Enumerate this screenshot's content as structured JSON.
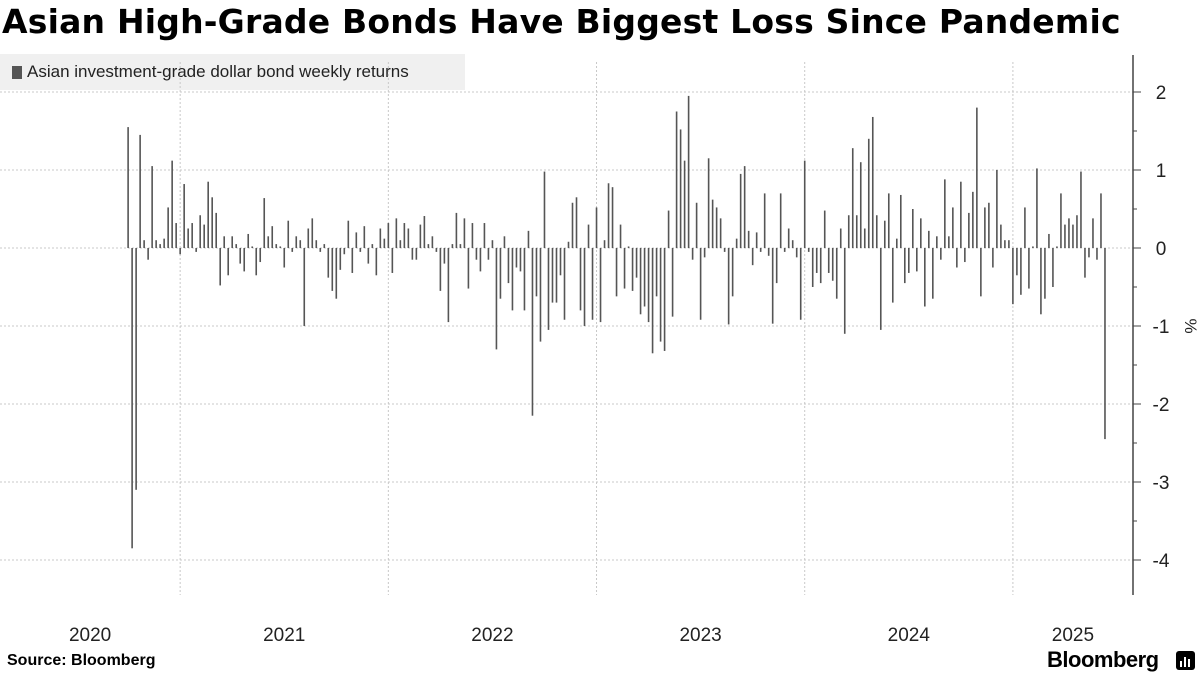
{
  "title": "Asian High-Grade Bonds Have Biggest Loss Since Pandemic",
  "legend": {
    "label": "Asian investment-grade dollar bond weekly returns"
  },
  "source": "Source: Bloomberg",
  "brand": "Bloomberg",
  "brand_icon": "bar-chart-icon",
  "colors": {
    "bar": "#555555",
    "grid": "#c8c8c8",
    "axis": "#444444",
    "legend_bg": "#f0f0f0"
  },
  "chart_data": {
    "type": "bar",
    "title": "Asian High-Grade Bonds Have Biggest Loss Since Pandemic",
    "series_name": "Asian investment-grade dollar bond weekly returns",
    "ylabel": "%",
    "ylim": [
      -4.45,
      2.5
    ],
    "yticks": [
      2,
      1,
      0,
      -1,
      -2,
      -3,
      -4
    ],
    "ytick_labels": [
      "2",
      "1",
      "0",
      "-1",
      "-2",
      "-3",
      "-4"
    ],
    "grid": true,
    "x_range_weeks": [
      -32,
      251
    ],
    "x_year_labels": [
      {
        "label": "2020",
        "week_start": -32,
        "week_end": 13
      },
      {
        "label": "2021",
        "week_start": 13,
        "week_end": 65
      },
      {
        "label": "2022",
        "week_start": 65,
        "week_end": 117
      },
      {
        "label": "2023",
        "week_start": 117,
        "week_end": 169
      },
      {
        "label": "2024",
        "week_start": 169,
        "week_end": 221
      },
      {
        "label": "2025",
        "week_start": 221,
        "week_end": 251
      }
    ],
    "x_gridline_weeks": [
      13,
      65,
      117,
      169,
      221
    ],
    "values": [
      1.55,
      -3.85,
      -3.1,
      1.45,
      0.1,
      -0.15,
      1.05,
      0.1,
      0.05,
      0.12,
      0.52,
      1.12,
      0.32,
      -0.08,
      0.82,
      0.25,
      0.32,
      -0.05,
      0.42,
      0.3,
      0.85,
      0.65,
      0.45,
      -0.48,
      0.15,
      -0.35,
      0.15,
      0.05,
      -0.2,
      -0.3,
      0.18,
      0.02,
      -0.35,
      -0.18,
      0.64,
      0.15,
      0.28,
      0.05,
      0.02,
      -0.25,
      0.35,
      -0.05,
      0.15,
      0.1,
      -1.0,
      0.25,
      0.38,
      0.1,
      -0.05,
      0.05,
      -0.38,
      -0.55,
      -0.65,
      -0.28,
      -0.08,
      0.35,
      -0.32,
      0.2,
      -0.05,
      0.28,
      -0.2,
      0.05,
      -0.35,
      0.25,
      0.12,
      0.32,
      -0.32,
      0.38,
      0.1,
      0.32,
      0.25,
      -0.15,
      -0.15,
      0.3,
      0.41,
      0.05,
      0.15,
      -0.05,
      -0.55,
      -0.2,
      -0.95,
      0.05,
      0.45,
      0.05,
      0.38,
      -0.52,
      0.32,
      -0.15,
      -0.3,
      0.32,
      -0.15,
      0.1,
      -1.3,
      -0.65,
      0.15,
      -0.45,
      -0.8,
      -0.25,
      -0.3,
      -0.8,
      0.22,
      -2.15,
      -0.62,
      -1.2,
      0.98,
      -1.05,
      -0.7,
      -0.7,
      -0.35,
      -0.92,
      0.08,
      0.58,
      0.65,
      -0.8,
      -1.0,
      0.3,
      -0.92,
      0.52,
      -0.95,
      0.1,
      0.83,
      0.78,
      -0.62,
      0.3,
      -0.52,
      0.02,
      -0.55,
      -0.38,
      -0.85,
      -0.75,
      -0.95,
      -1.35,
      -0.62,
      -1.2,
      -1.32,
      0.48,
      -0.88,
      1.75,
      1.52,
      1.12,
      1.95,
      -0.15,
      0.58,
      -0.92,
      -0.12,
      1.15,
      0.62,
      0.52,
      0.38,
      -0.05,
      -0.98,
      -0.62,
      0.12,
      0.95,
      1.05,
      0.22,
      -0.22,
      0.2,
      -0.05,
      0.7,
      -0.1,
      -0.97,
      -0.45,
      0.7,
      -0.05,
      0.25,
      0.1,
      -0.12,
      -0.92,
      1.12,
      -0.05,
      -0.5,
      -0.32,
      -0.45,
      0.48,
      -0.32,
      -0.42,
      -0.65,
      0.25,
      -1.1,
      0.42,
      1.28,
      0.42,
      1.1,
      0.25,
      1.4,
      1.68,
      0.42,
      -1.05,
      0.35,
      0.7,
      -0.7,
      0.12,
      0.68,
      -0.45,
      -0.32,
      0.5,
      -0.3,
      0.38,
      -0.75,
      0.22,
      -0.65,
      0.15,
      -0.15,
      0.88,
      0.15,
      0.52,
      -0.25,
      0.85,
      -0.18,
      0.45,
      0.72,
      1.8,
      -0.62,
      0.52,
      0.58,
      -0.25,
      1.0,
      0.3,
      0.1,
      0.1,
      -0.72,
      -0.35,
      -0.6,
      0.52,
      -0.52,
      0.02,
      1.02,
      -0.85,
      -0.65,
      0.18,
      -0.5,
      0.02,
      0.7,
      0.3,
      0.38,
      0.3,
      0.42,
      0.98,
      -0.38,
      -0.12,
      0.38,
      -0.15,
      0.7,
      -2.45
    ]
  }
}
